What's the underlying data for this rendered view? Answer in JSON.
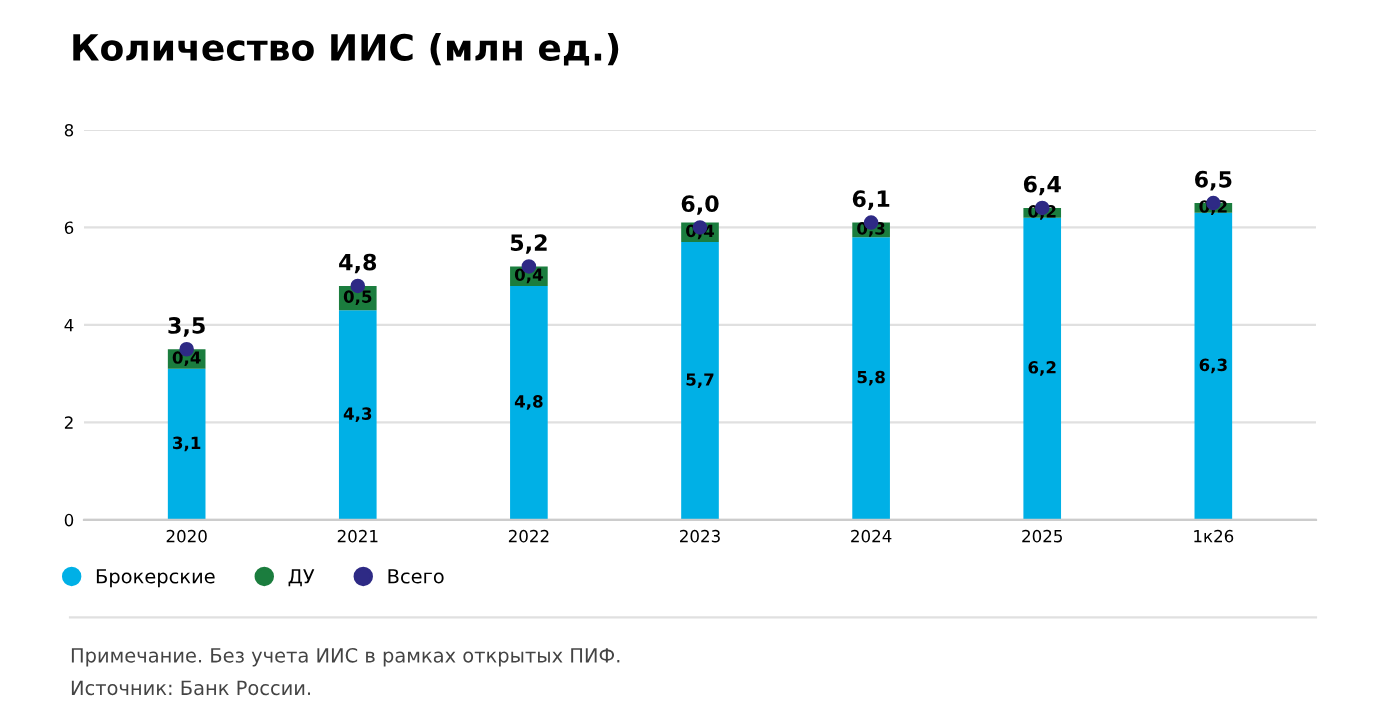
{
  "chart_data": {
    "type": "bar",
    "title": "Количество ИИС (млн ед.)",
    "stacked": true,
    "categories": [
      "2020",
      "2021",
      "2022",
      "2023",
      "2024",
      "2025",
      "1к26"
    ],
    "series": [
      {
        "name": "Брокерские",
        "color": "#00b0e6",
        "values": [
          3.1,
          4.3,
          4.8,
          5.7,
          5.8,
          6.2,
          6.3
        ],
        "value_labels": [
          "3,1",
          "4,3",
          "4,8",
          "5,7",
          "5,8",
          "6,2",
          "6,3"
        ]
      },
      {
        "name": "ДУ",
        "color": "#1b7d3e",
        "values": [
          0.4,
          0.5,
          0.4,
          0.4,
          0.3,
          0.2,
          0.2
        ],
        "value_labels": [
          "0,4",
          "0,5",
          "0,4",
          "0,4",
          "0,3",
          "0,2",
          "0,2"
        ]
      },
      {
        "name": "Всего",
        "type": "scatter",
        "color": "#2e2a85",
        "values": [
          3.5,
          4.8,
          5.2,
          6.0,
          6.1,
          6.4,
          6.5
        ],
        "value_labels": [
          "3,5",
          "4,8",
          "5,2",
          "6,0",
          "6,1",
          "6,4",
          "6,5"
        ]
      }
    ],
    "ylim": [
      0,
      8
    ],
    "yticks": [
      0,
      2,
      4,
      6,
      8
    ],
    "grid": "y",
    "legend": "bottom left",
    "marker": "circle",
    "annotations": [
      "Примечание. Без учета ИИС в рамках открытых ПИФ.",
      "Источник: Банк России."
    ]
  }
}
